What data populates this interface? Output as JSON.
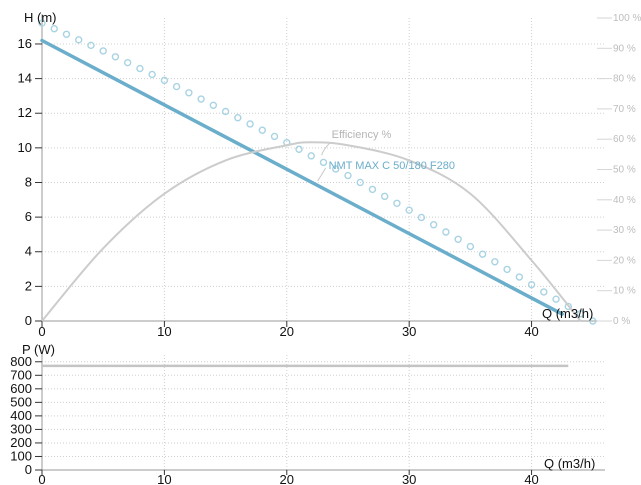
{
  "chart_data": [
    {
      "type": "line",
      "title": "",
      "xlabel": "Q (m3/h)",
      "ylabel": "H (m)",
      "y2label": "",
      "xlim": [
        0,
        46
      ],
      "ylim": [
        0,
        17.5
      ],
      "y2lim": [
        0,
        100
      ],
      "xticks": [
        0,
        10,
        20,
        30,
        40
      ],
      "yticks": [
        0,
        2,
        4,
        6,
        8,
        10,
        12,
        14,
        16
      ],
      "y2ticks": [
        "0 %",
        "10 %",
        "20 %",
        "30 %",
        "40 %",
        "50 %",
        "60 %",
        "70 %",
        "80 %",
        "90 %",
        "100 %"
      ],
      "grid": true,
      "series": [
        {
          "name": "NMT MAX C 50/180 F280",
          "color": "#6aaecb",
          "style": "solid",
          "axis": "left",
          "x": [
            0,
            42.5
          ],
          "values": [
            16.2,
            0.4
          ]
        },
        {
          "name": "",
          "color": "#a8d3e3",
          "style": "circles",
          "axis": "left",
          "x": [
            0,
            5,
            10,
            15,
            20,
            25,
            30,
            35,
            40,
            45
          ],
          "values": [
            17.2,
            15.6,
            13.9,
            12.1,
            10.3,
            8.4,
            6.4,
            4.3,
            2.1,
            0.0
          ]
        },
        {
          "name": "Efficiency %",
          "color": "#cccccc",
          "style": "solid",
          "axis": "right",
          "x": [
            0,
            5,
            10,
            15,
            20,
            22,
            25,
            30,
            35,
            40,
            44
          ],
          "values": [
            0,
            24,
            42,
            53,
            58,
            59,
            58,
            53,
            42,
            20,
            0
          ]
        }
      ],
      "annotations": [
        {
          "text": "Efficiency %",
          "x": 23.5,
          "y2": 60,
          "color": "#b5b5b5"
        },
        {
          "text": "NMT MAX C 50/180 F280",
          "x": 23.5,
          "y": 9.0,
          "color": "#6aaecb"
        }
      ]
    },
    {
      "type": "line",
      "title": "",
      "xlabel": "Q (m3/h)",
      "ylabel": "P (W)",
      "xlim": [
        0,
        46
      ],
      "ylim": [
        0,
        850
      ],
      "xticks": [
        0,
        10,
        20,
        30,
        40
      ],
      "yticks": [
        0,
        100,
        200,
        300,
        400,
        500,
        600,
        700,
        800
      ],
      "grid": true,
      "series": [
        {
          "name": "",
          "color": "#c4c4c4",
          "style": "solid",
          "x": [
            0,
            43
          ],
          "values": [
            770,
            770
          ]
        }
      ]
    }
  ]
}
